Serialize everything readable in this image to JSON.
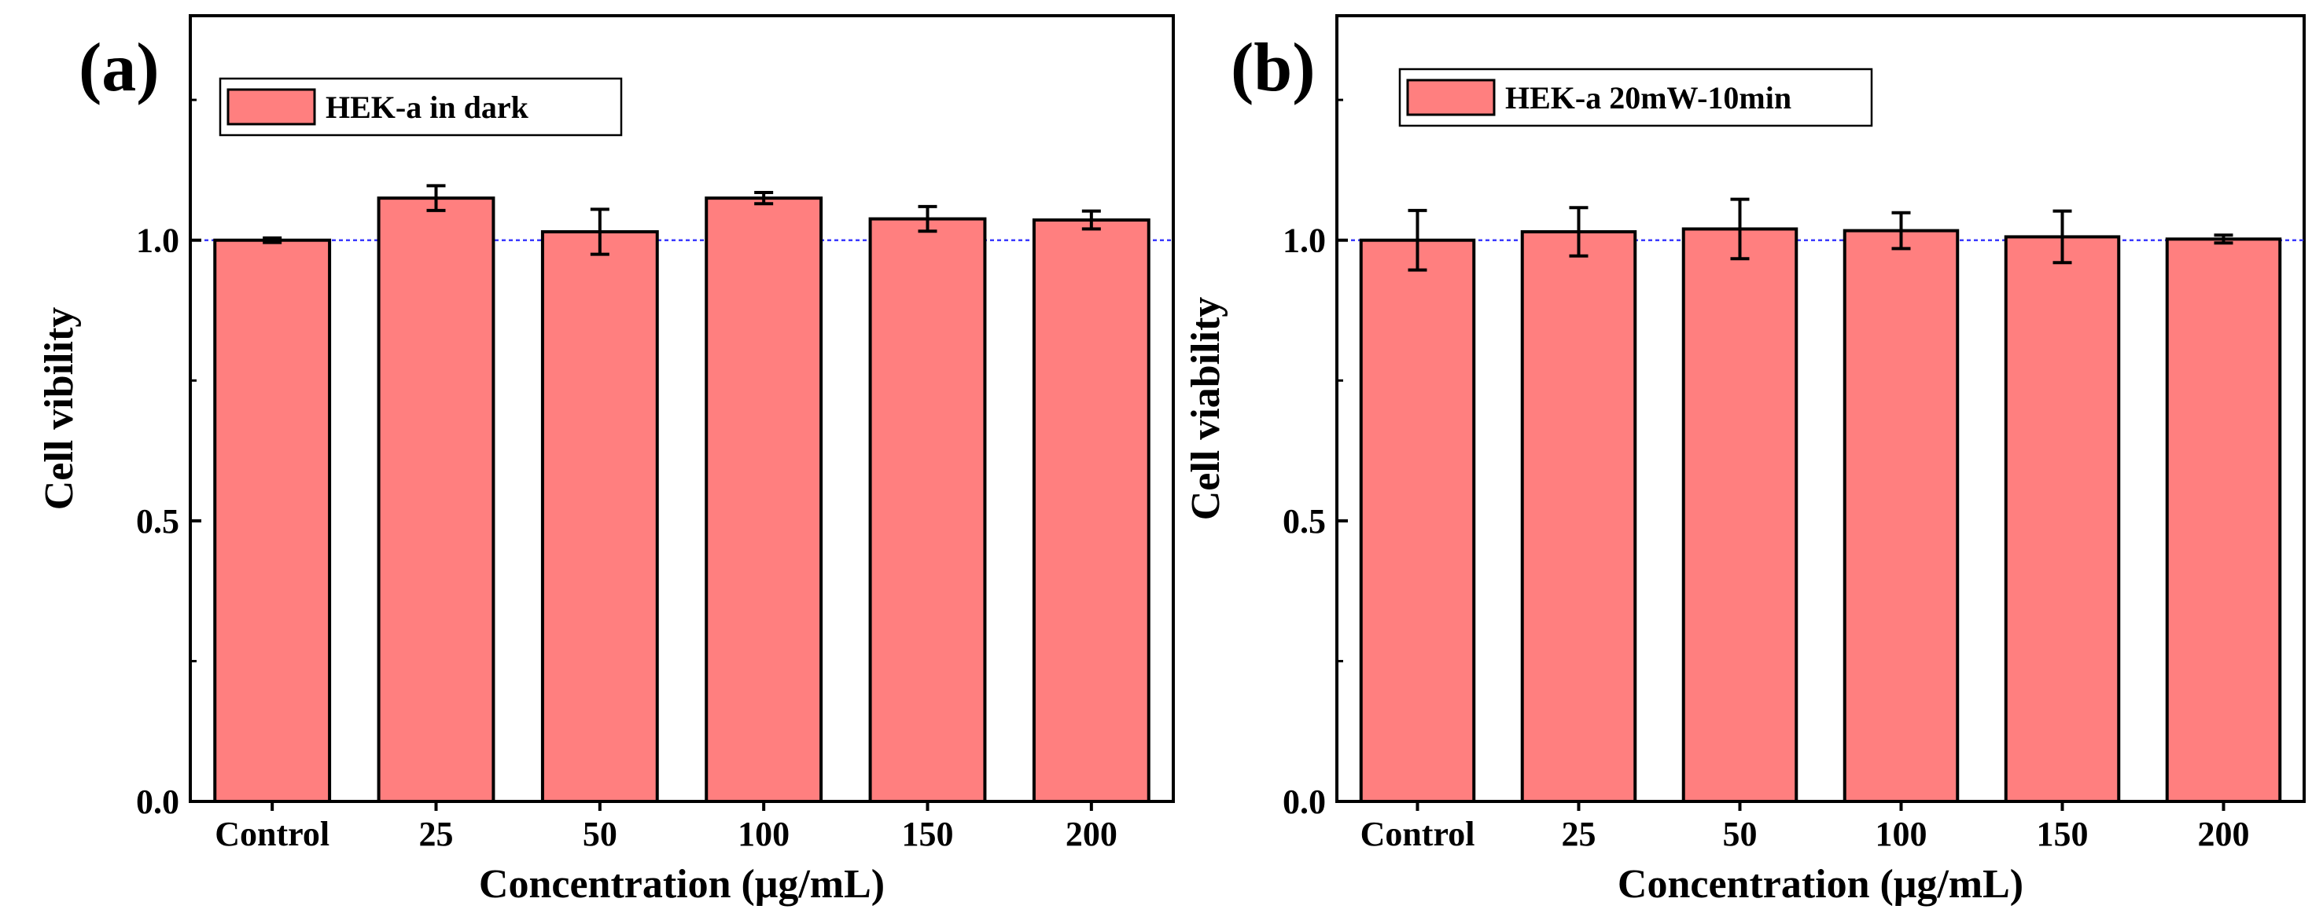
{
  "figure": {
    "colors": {
      "bar_fill": "#ff7f7f",
      "bar_stroke": "#000000",
      "ref_line": "#3a3aff",
      "axis": "#000000"
    }
  },
  "chart_data": [
    {
      "type": "bar",
      "panel_label": "(a)",
      "legend": "HEK-a  in dark",
      "xlabel": "Concentration (μg/mL)",
      "ylabel": "Cell vibility",
      "categories": [
        "Control",
        "25",
        "50",
        "100",
        "150",
        "200"
      ],
      "values": [
        1.0,
        1.075,
        1.015,
        1.075,
        1.038,
        1.036
      ],
      "errors": [
        0.004,
        0.022,
        0.04,
        0.01,
        0.022,
        0.016
      ],
      "ylim": [
        0,
        1.4
      ],
      "yticks": [
        0.0,
        0.5,
        1.0
      ],
      "ytick_labels": [
        "0.0",
        "0.5",
        "1.0"
      ],
      "reference_line": 1.0
    },
    {
      "type": "bar",
      "panel_label": "(b)",
      "legend": "HEK-a 20mW-10min",
      "xlabel": "Concentration (μg/mL)",
      "ylabel": "Cell viability",
      "categories": [
        "Control",
        "25",
        "50",
        "100",
        "150",
        "200"
      ],
      "values": [
        1.0,
        1.015,
        1.02,
        1.017,
        1.006,
        1.002
      ],
      "errors": [
        0.053,
        0.043,
        0.053,
        0.032,
        0.046,
        0.007
      ],
      "ylim": [
        0,
        1.4
      ],
      "yticks": [
        0.0,
        0.5,
        1.0
      ],
      "ytick_labels": [
        "0.0",
        "0.5",
        "1.0"
      ],
      "reference_line": 1.0
    }
  ]
}
